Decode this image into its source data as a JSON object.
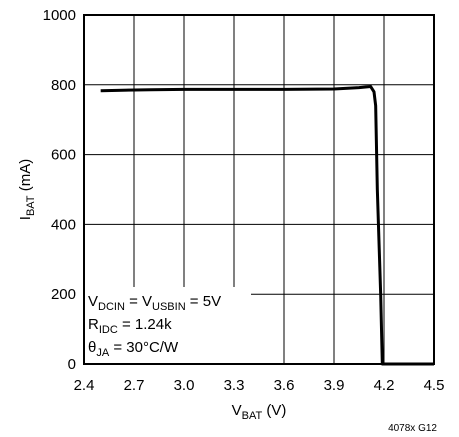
{
  "chart_data": {
    "type": "line",
    "title": "",
    "xlabel": {
      "main": "V",
      "sub": "BAT",
      "unit": " (V)"
    },
    "ylabel": {
      "main": "I",
      "sub": "BAT",
      "unit": " (mA)"
    },
    "xlim": [
      2.5,
      4.5
    ],
    "ylim": [
      0,
      1000
    ],
    "x_ticks": [
      2.4,
      2.7,
      3.0,
      3.3,
      3.6,
      3.9,
      4.2,
      4.5
    ],
    "x_tick_labels": [
      "2.4",
      "2.7",
      "3.0",
      "3.3",
      "3.6",
      "3.9",
      "4.2",
      "4.5"
    ],
    "y_ticks": [
      0,
      200,
      400,
      600,
      800,
      1000
    ],
    "y_tick_labels": [
      "0",
      "200",
      "400",
      "600",
      "800",
      "1000"
    ],
    "grid": true,
    "series": [
      {
        "x": [
          2.5,
          2.6,
          2.8,
          3.0,
          3.3,
          3.6,
          3.9,
          4.05,
          4.12,
          4.14,
          4.15,
          4.16,
          4.18,
          4.19,
          4.2,
          4.3,
          4.4,
          4.5
        ],
        "y": [
          783,
          784,
          786,
          787,
          787,
          787,
          788,
          792,
          795,
          780,
          740,
          500,
          200,
          0,
          0,
          0,
          0,
          0
        ]
      }
    ],
    "annotations": [
      {
        "parts": [
          [
            "V",
            ""
          ],
          [
            "DCIN",
            "sub"
          ],
          [
            " = V",
            ""
          ],
          [
            "USBIN",
            "sub"
          ],
          [
            " = 5V",
            ""
          ]
        ]
      },
      {
        "parts": [
          [
            "R",
            ""
          ],
          [
            "IDC",
            "sub"
          ],
          [
            " = 1.24k",
            ""
          ]
        ]
      },
      {
        "parts": [
          [
            "θ",
            ""
          ],
          [
            "JA",
            "sub"
          ],
          [
            " = 30°C/W",
            ""
          ]
        ]
      }
    ],
    "figure_id": "4078x G12"
  }
}
